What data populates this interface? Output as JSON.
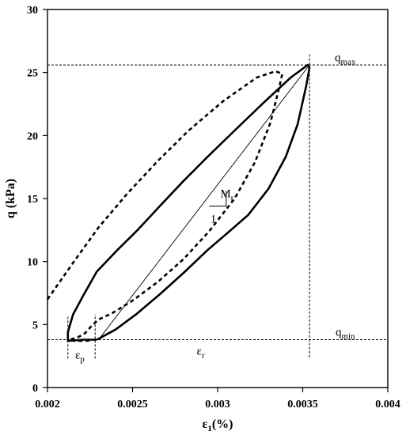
{
  "chart_data": {
    "type": "line",
    "xlabel": {
      "main": "ε",
      "sub": "1",
      "rest": "(%)"
    },
    "ylabel": "q (kPa)",
    "xlim": [
      0.002,
      0.004
    ],
    "ylim": [
      0,
      30
    ],
    "x_ticks": [
      0.002,
      0.0025,
      0.003,
      0.0035,
      0.004
    ],
    "x_tick_labels": [
      "0.002",
      "0.0025",
      "0.003",
      "0.0035",
      "0.004"
    ],
    "y_ticks": [
      0,
      5,
      10,
      15,
      20,
      25,
      30
    ],
    "y_tick_labels": [
      "0",
      "5",
      "10",
      "15",
      "20",
      "25",
      "30"
    ],
    "grid": false,
    "series": [
      {
        "style": "solid-bold",
        "x": [
          0.00229,
          0.0024,
          0.00252,
          0.00266,
          0.0028,
          0.00294,
          0.00307,
          0.00318,
          0.0033,
          0.0034,
          0.00347,
          0.00352,
          0.00354,
          0.00353,
          0.00343,
          0.00327,
          0.0031,
          0.00294,
          0.0028,
          0.00266,
          0.00253,
          0.00241,
          0.00229,
          0.00221,
          0.00215,
          0.00212,
          0.00212,
          0.00221,
          0.00229
        ],
        "y": [
          3.8,
          4.6,
          5.8,
          7.4,
          9.1,
          10.9,
          12.4,
          13.7,
          15.8,
          18.3,
          20.9,
          23.9,
          25.4,
          25.6,
          24.6,
          22.6,
          20.4,
          18.3,
          16.4,
          14.4,
          12.5,
          10.9,
          9.2,
          7.3,
          5.8,
          4.4,
          3.7,
          3.8,
          3.8
        ]
      },
      {
        "style": "dashed-bold",
        "x": [
          0.002,
          0.00215,
          0.0023,
          0.00247,
          0.00265,
          0.00283,
          0.00303,
          0.00323,
          0.00334,
          0.00338,
          0.00336,
          0.00331,
          0.00322,
          0.0031,
          0.00295,
          0.0028,
          0.00265,
          0.0025,
          0.00238,
          0.0023,
          0.00226,
          0.00222,
          0.00218,
          0.00213,
          0.00216,
          0.00223,
          0.00227
        ],
        "y": [
          7.0,
          9.9,
          12.7,
          15.4,
          18.0,
          20.4,
          22.7,
          24.6,
          25.1,
          24.9,
          23.7,
          21.0,
          17.9,
          15.0,
          12.4,
          10.2,
          8.4,
          6.9,
          5.9,
          5.4,
          4.9,
          4.3,
          4.0,
          3.8,
          3.7,
          3.7,
          3.8
        ]
      },
      {
        "style": "thin-solid",
        "x": [
          0.0023,
          0.00354
        ],
        "y": [
          3.8,
          25.6
        ]
      }
    ],
    "reference_lines": [
      {
        "axis": "y",
        "value": 25.6,
        "from_x": 0.002,
        "to_x": 0.004
      },
      {
        "axis": "y",
        "value": 3.8,
        "from_x": 0.002,
        "to_x": 0.004
      },
      {
        "axis": "x",
        "value": 0.00354,
        "from_y": 2.4,
        "to_y": 26.5
      },
      {
        "axis": "x",
        "value": 0.00212,
        "from_y": 2.3,
        "to_y": 5.6
      },
      {
        "axis": "x",
        "value": 0.00228,
        "from_y": 2.3,
        "to_y": 5.8
      }
    ],
    "slope_triangle": {
      "x0": 0.00295,
      "x1": 0.00305,
      "y0": 14.4,
      "y1": 15.6
    },
    "annotations": [
      {
        "main": "q",
        "sub": "max",
        "x": 0.00375,
        "y": 25.9
      },
      {
        "main": "q",
        "sub": "min",
        "x": 0.00375,
        "y": 4.1
      },
      {
        "main": "M",
        "sub": "r",
        "x": 0.003055,
        "y": 15.1
      },
      {
        "main": "1",
        "sub": "",
        "x": 0.002975,
        "y": 13.1
      },
      {
        "main": "ε",
        "sub": "r",
        "x": 0.0029,
        "y": 2.6
      },
      {
        "main": "ε",
        "sub": "p",
        "x": 0.00219,
        "y": 2.3
      }
    ]
  }
}
